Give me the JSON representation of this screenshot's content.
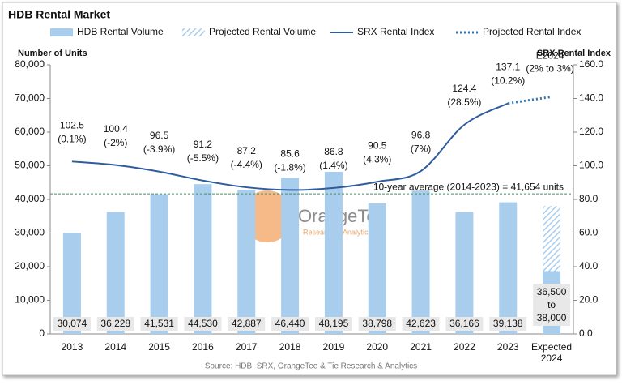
{
  "chart_data": {
    "type": "combo",
    "title": "HDB Rental Market",
    "y_label": "Number of Units",
    "y2_label": "SRX Rental Index",
    "source": "Source: HDB, SRX, OrangeTee & Tie Research & Analytics",
    "watermark": {
      "name": "OrangeTee",
      "subtitle": "Research & Analytics"
    },
    "categories": [
      "2013",
      "2014",
      "2015",
      "2016",
      "2017",
      "2018",
      "2019",
      "2020",
      "2021",
      "2022",
      "2023",
      "Expected 2024"
    ],
    "series": [
      {
        "name": "HDB Rental Volume",
        "type": "bar",
        "color": "#a9cdec",
        "values": [
          30074,
          36228,
          41531,
          44530,
          42887,
          46440,
          48195,
          38798,
          42623,
          36166,
          39138,
          18700
        ],
        "value_labels": [
          "30,074",
          "36,228",
          "41,531",
          "44,530",
          "42,887",
          "46,440",
          "48,195",
          "38,798",
          "42,623",
          "36,166",
          "39,138",
          null
        ]
      },
      {
        "name": "Projected Rental Volume",
        "type": "bar",
        "pattern": "hatched",
        "color": "#a9cdec",
        "values": [
          null,
          null,
          null,
          null,
          null,
          null,
          null,
          null,
          null,
          null,
          null,
          38000
        ],
        "value_labels": [
          null,
          null,
          null,
          null,
          null,
          null,
          null,
          null,
          null,
          null,
          null,
          "36,500 to 38,000"
        ]
      },
      {
        "name": "SRX Rental Index",
        "type": "line",
        "axis": "y2",
        "color": "#2f5c9e",
        "values": [
          102.5,
          100.4,
          96.5,
          91.2,
          87.2,
          85.6,
          86.8,
          90.5,
          96.8,
          124.4,
          137.1,
          null
        ],
        "changes": [
          "(0.1%)",
          "(-2%)",
          "(-3.9%)",
          "(-5.5%)",
          "(-4.4%)",
          "(-1.8%)",
          "(1.4%)",
          "(4.3%)",
          "(7%)",
          "(28.5%)",
          "(10.2%)",
          null
        ]
      },
      {
        "name": "Projected Rental Index",
        "type": "line",
        "axis": "y2",
        "line_style": "dotted",
        "color": "#2e75b6",
        "values": [
          null,
          null,
          null,
          null,
          null,
          null,
          null,
          null,
          null,
          null,
          137.1,
          141
        ],
        "annotation": [
          "E2024",
          "(2% to 3%)"
        ]
      }
    ],
    "average_line": {
      "value": 41654,
      "label": "10-year average (2014-2023) = 41,654 units"
    },
    "ylim": [
      0,
      80000
    ],
    "yticks": [
      0,
      {
        "value": 10000,
        "label": "10,000"
      },
      {
        "value": 20000,
        "label": "20,000"
      },
      {
        "value": 30000,
        "label": "30,000"
      },
      {
        "value": 40000,
        "label": "40,000"
      },
      {
        "value": 50000,
        "label": "50,000"
      },
      {
        "value": 60000,
        "label": "60,000"
      },
      {
        "value": 70000,
        "label": "70,000"
      },
      {
        "value": 80000,
        "label": "80,000"
      }
    ],
    "y2lim": [
      0,
      160
    ],
    "y2ticks": [
      {
        "value": 0,
        "label": "0.0"
      },
      {
        "value": 20,
        "label": "20.0"
      },
      {
        "value": 40,
        "label": "40.0"
      },
      {
        "value": 60,
        "label": "60.0"
      },
      {
        "value": 80,
        "label": "80.0"
      },
      {
        "value": 100,
        "label": "100.0"
      },
      {
        "value": 120,
        "label": "120.0"
      },
      {
        "value": 140,
        "label": "140.0"
      },
      {
        "value": 160,
        "label": "160.0"
      }
    ],
    "grid": false
  }
}
